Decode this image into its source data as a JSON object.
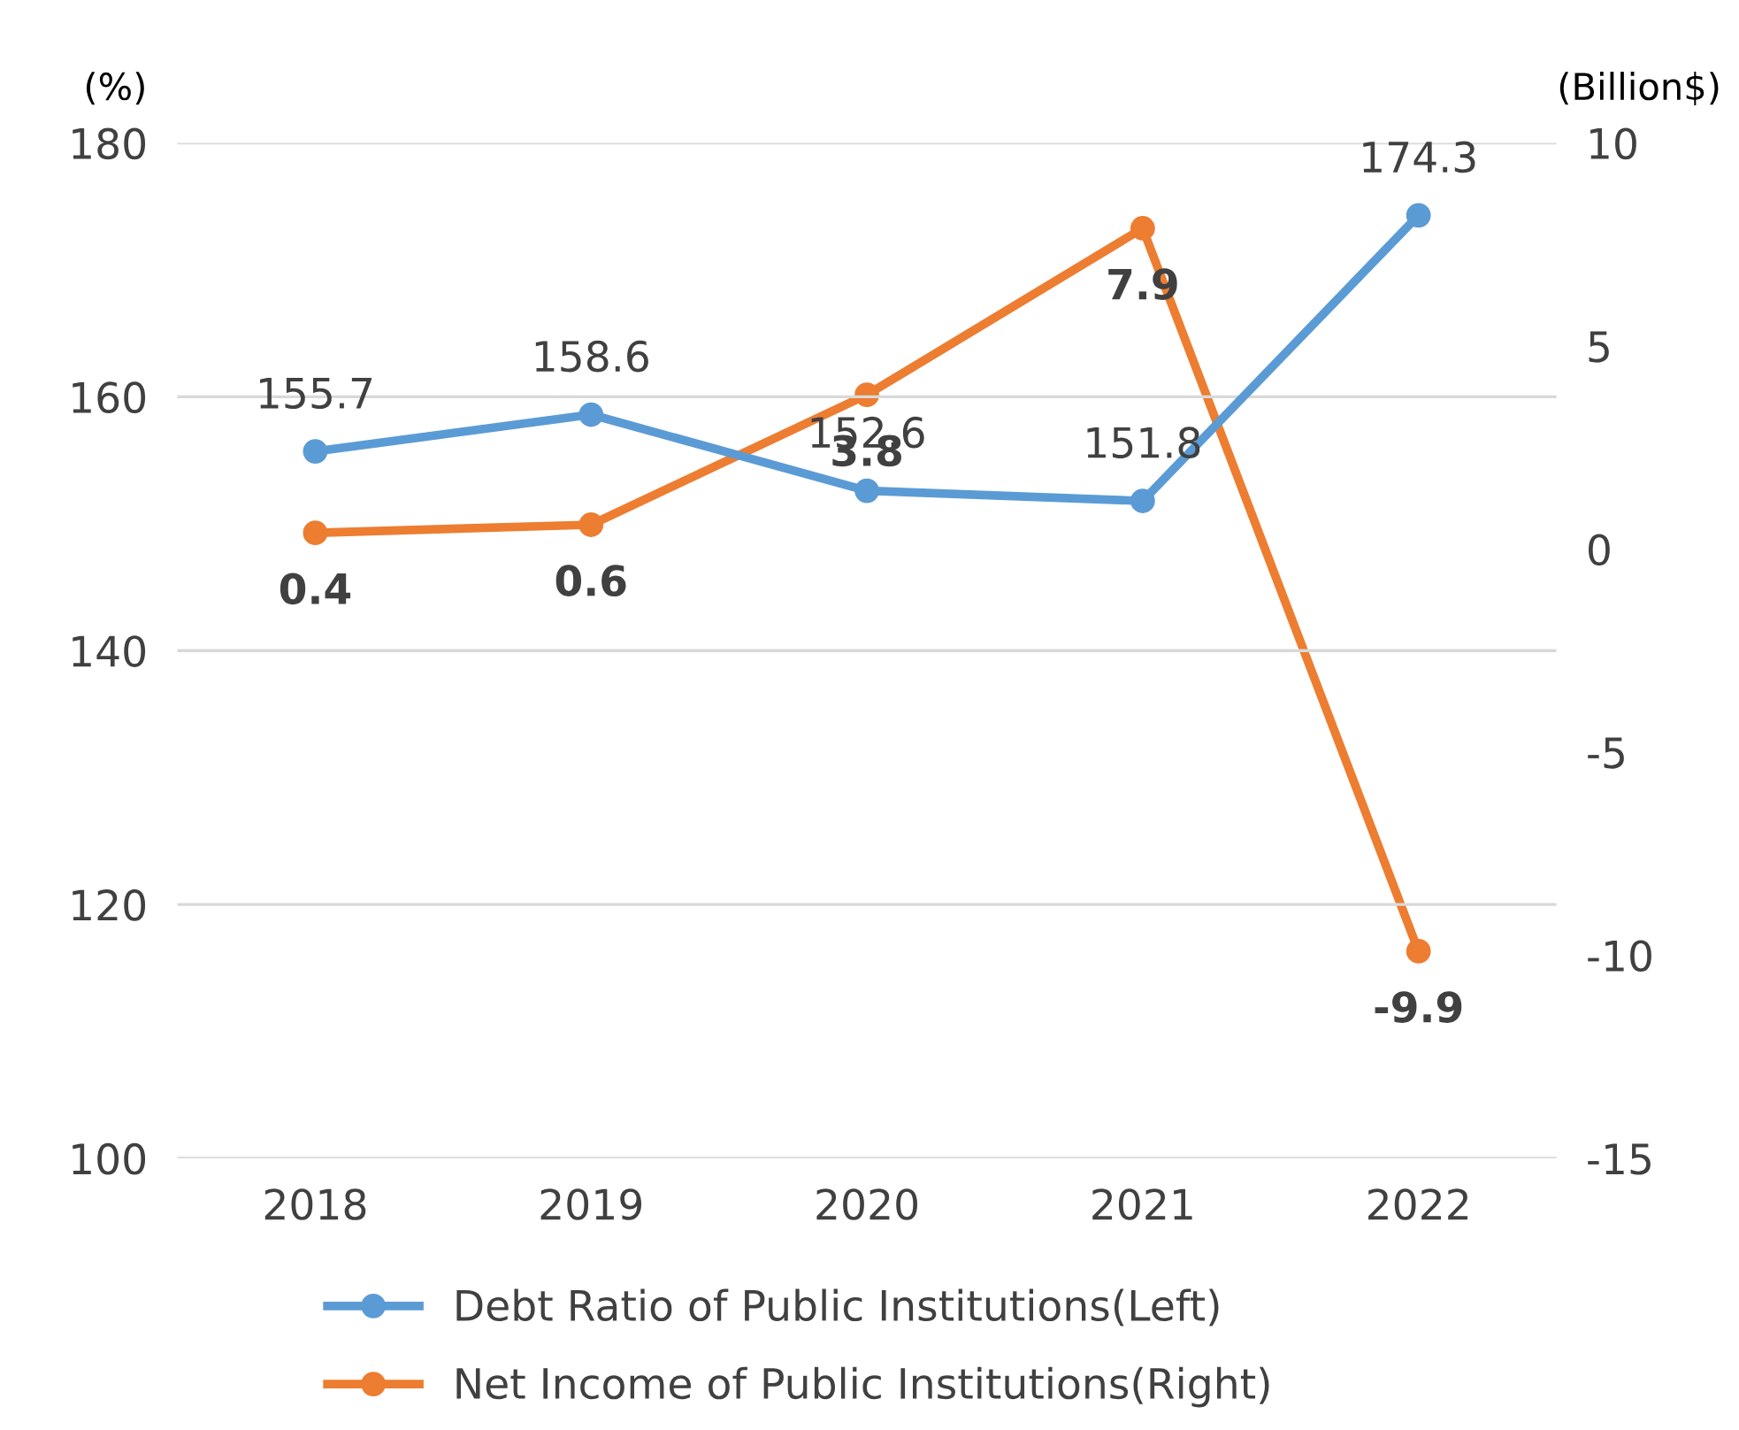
{
  "chart_data": {
    "type": "line",
    "categories": [
      "2018",
      "2019",
      "2020",
      "2021",
      "2022"
    ],
    "series": [
      {
        "name": "Debt Ratio of Public Institutions(Left)",
        "color": "#5b9bd5",
        "values": [
          155.7,
          158.6,
          152.6,
          151.8,
          174.3
        ]
      },
      {
        "name": "Net Income of Public Institutions(Right)",
        "color": "#ed7d31",
        "axis": "y2",
        "values": [
          0.4,
          0.6,
          3.8,
          7.9,
          -9.9
        ]
      }
    ],
    "ylabel": "(%)",
    "y2label": "(Billion$)",
    "ylim": [
      100,
      180
    ],
    "yticks": [
      100,
      120,
      140,
      160,
      180
    ],
    "y2lim": [
      -15,
      10
    ],
    "y2ticks": [
      -15,
      -10,
      -5,
      0,
      5,
      10
    ],
    "grid": "y",
    "legend": "bottom",
    "marker": "circle",
    "line_style": "solid",
    "data_labels": true
  }
}
